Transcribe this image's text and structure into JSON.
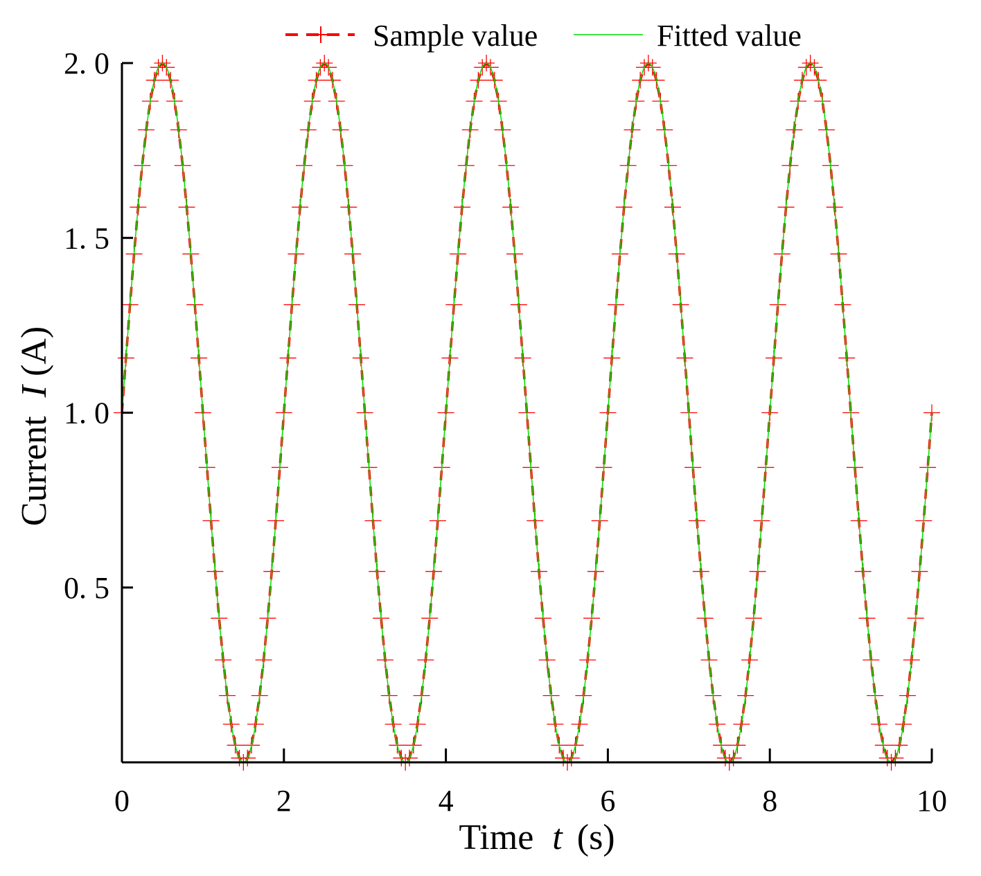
{
  "chart_data": {
    "type": "line",
    "title": "",
    "xlabel_prefix": "Time",
    "xlabel_var": "t",
    "xlabel_unit": "(s)",
    "ylabel_prefix": "Current",
    "ylabel_var": "I",
    "ylabel_unit": "(A)",
    "xlim": [
      0,
      10
    ],
    "ylim": [
      0,
      2.0
    ],
    "xticks": [
      0,
      2,
      4,
      6,
      8,
      10
    ],
    "xtick_labels": [
      "0",
      "2",
      "4",
      "6",
      "8",
      "10"
    ],
    "yticks": [
      0.5,
      1.0,
      1.5,
      2.0
    ],
    "ytick_labels": [
      "0. 5",
      "1. 0",
      "1. 5",
      "2. 0"
    ],
    "grid": false,
    "legend_position": "top-center",
    "series": [
      {
        "name": "Sample value",
        "style": "dashed-with-plus-markers",
        "color": "#ff0000",
        "function": "I(t) = 1 + sin(pi * t)",
        "x_start": 0,
        "x_end": 10,
        "sample_step": 0.05,
        "period": 2,
        "peak_times": [
          0.5,
          2.5,
          4.5,
          6.5,
          8.5
        ],
        "peak_value": 2.0,
        "trough_times": [
          1.5,
          3.5,
          5.5,
          7.5,
          9.5
        ],
        "trough_value": 0.0
      },
      {
        "name": "Fitted value",
        "style": "solid",
        "color": "#00dd00",
        "function": "I(t) = 1 + sin(pi * t)",
        "x_start": 0,
        "x_end": 10,
        "sample_step": 0.01
      }
    ]
  }
}
